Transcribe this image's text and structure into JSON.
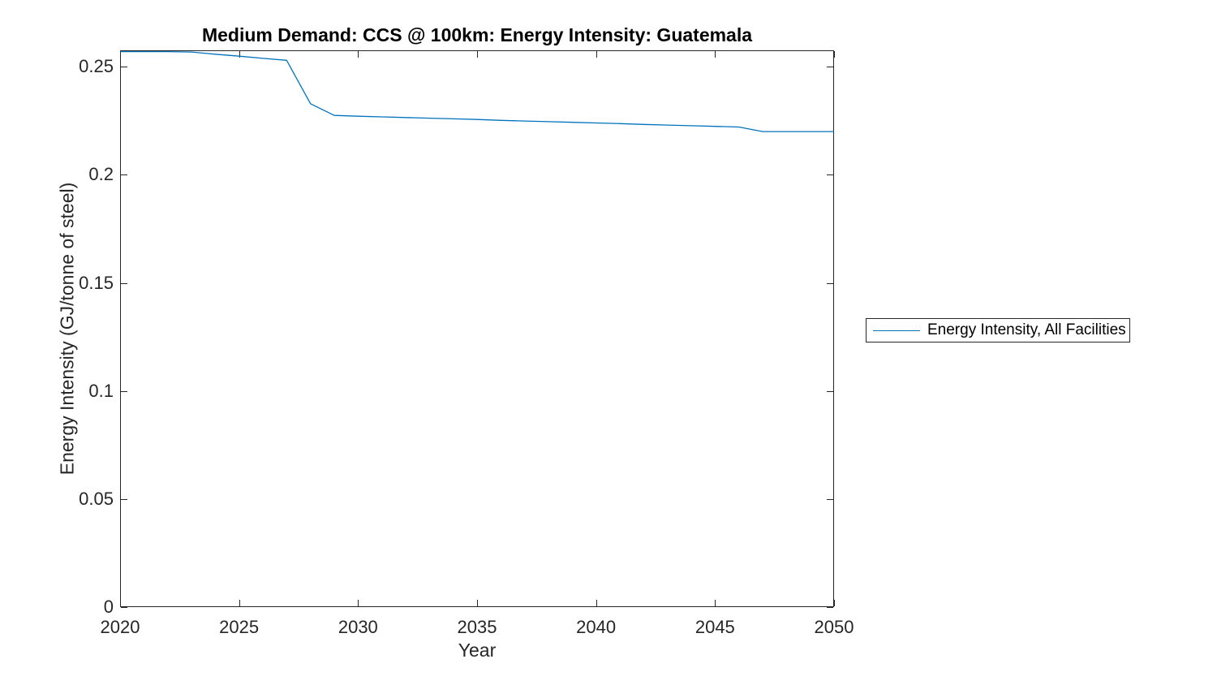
{
  "figure": {
    "background": "#ffffff"
  },
  "chart_data": {
    "type": "line",
    "title": "Medium Demand: CCS @ 100km: Energy Intensity: Guatemala",
    "xlabel": "Year",
    "ylabel": "Energy Intensity (GJ/tonne of steel)",
    "xlim": [
      2020,
      2050
    ],
    "ylim": [
      0,
      0.2576
    ],
    "xticks": [
      2020,
      2025,
      2030,
      2035,
      2040,
      2045,
      2050
    ],
    "xtick_labels": [
      "2020",
      "2025",
      "2030",
      "2035",
      "2040",
      "2045",
      "2050"
    ],
    "yticks": [
      0,
      0.05,
      0.1,
      0.15,
      0.2,
      0.25
    ],
    "ytick_labels": [
      "0",
      "0.05",
      "0.1",
      "0.15",
      "0.2",
      "0.25"
    ],
    "grid": false,
    "box": true,
    "axes_color": "#262626",
    "line_color": "#0072BD",
    "legend": {
      "position": "right-outside",
      "entries": [
        "Energy Intensity, All Facilities"
      ]
    },
    "x": [
      2020,
      2021,
      2022,
      2023,
      2024,
      2025,
      2026,
      2027,
      2028,
      2029,
      2030,
      2031,
      2032,
      2033,
      2034,
      2035,
      2036,
      2037,
      2038,
      2039,
      2040,
      2041,
      2042,
      2043,
      2044,
      2045,
      2046,
      2047,
      2048,
      2049,
      2050
    ],
    "series": [
      {
        "name": "Energy Intensity, All Facilities",
        "values": [
          0.257,
          0.257,
          0.257,
          0.2568,
          0.2558,
          0.2549,
          0.2539,
          0.253,
          0.2329,
          0.2275,
          0.2271,
          0.2268,
          0.2265,
          0.2262,
          0.2259,
          0.2256,
          0.2252,
          0.2249,
          0.2246,
          0.2243,
          0.224,
          0.2237,
          0.2233,
          0.223,
          0.2227,
          0.2224,
          0.2221,
          0.22,
          0.22,
          0.22,
          0.22
        ]
      }
    ]
  }
}
